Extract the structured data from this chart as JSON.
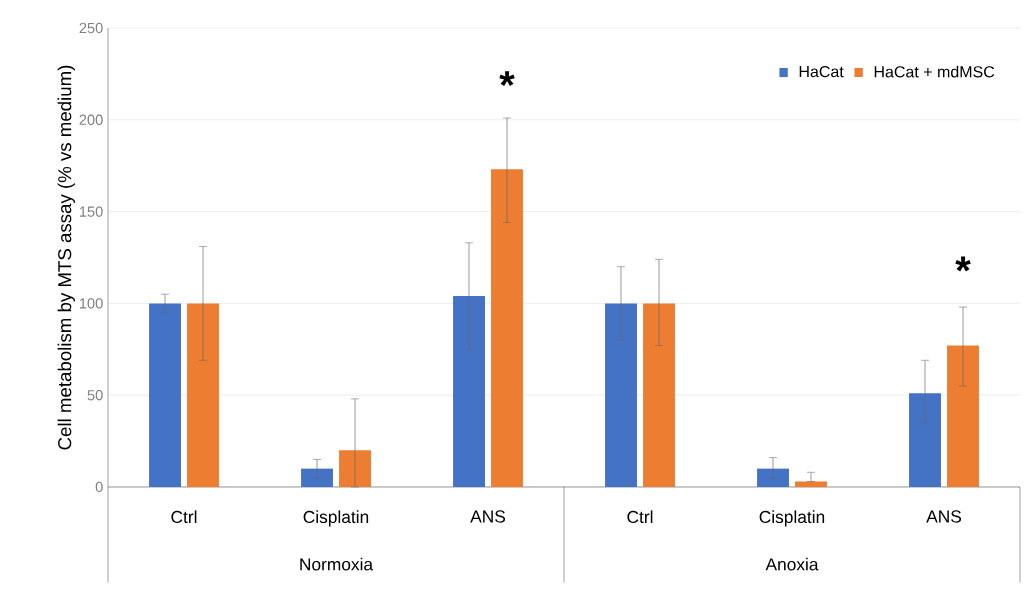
{
  "chart_data": {
    "type": "bar",
    "ylabel": "Cell metabolism by MTS assay  (% vs medium)",
    "categories": [
      "Ctrl",
      "Cisplatin",
      "ANS",
      "Ctrl",
      "Cisplatin",
      "ANS"
    ],
    "series": [
      {
        "name": "HaCat",
        "color": "#4472c4",
        "values": [
          100,
          10,
          104,
          100,
          10,
          51
        ],
        "errors": [
          5,
          5,
          [
            75,
            133
          ],
          20,
          [
            5,
            16
          ],
          [
            35,
            69
          ]
        ]
      },
      {
        "name": "HaCat + mdMSC",
        "color": "#ed7d31",
        "values": [
          100,
          20,
          173,
          100,
          3,
          77
        ],
        "errors": [
          31,
          [
            0,
            48
          ],
          [
            144,
            201
          ],
          [
            77,
            124
          ],
          [
            3,
            8
          ],
          [
            55,
            98
          ]
        ]
      }
    ],
    "ylim": [
      0,
      250
    ],
    "yticks": [
      0,
      50,
      100,
      150,
      200,
      250
    ],
    "grid": "y",
    "legend": "top right",
    "annotations": [
      "*",
      "*",
      "Normoxia",
      "Anoxia"
    ]
  }
}
